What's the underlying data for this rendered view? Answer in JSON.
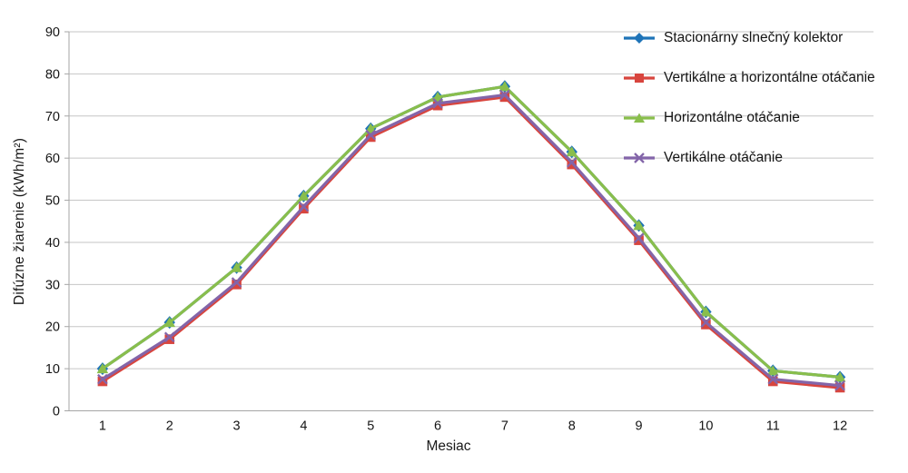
{
  "chart_data": {
    "type": "line",
    "title": "",
    "xlabel": "Mesiac",
    "ylabel": "Difúzne žiarenie (kWh/m²)",
    "x": [
      1,
      2,
      3,
      4,
      5,
      6,
      7,
      8,
      9,
      10,
      11,
      12
    ],
    "ylim": [
      0,
      90
    ],
    "ytick_step": 10,
    "grid": true,
    "legend_position": "right-top",
    "series": [
      {
        "name": "Stacionárny slnečný kolektor",
        "color": "#1F74B8",
        "marker": "diamond",
        "values": [
          10,
          21,
          34,
          51,
          67,
          74.5,
          77,
          61.5,
          44,
          23.5,
          9.5,
          8
        ]
      },
      {
        "name": "Vertikálne a horizontálne otáčanie",
        "color": "#D8453E",
        "marker": "square",
        "values": [
          7,
          17,
          30,
          48,
          65,
          72.5,
          74.5,
          58.5,
          40.5,
          20.5,
          7,
          5.5
        ]
      },
      {
        "name": "Horizontálne otáčanie",
        "color": "#89BE4C",
        "marker": "triangle-up",
        "values": [
          10,
          21,
          34,
          51,
          67,
          74.5,
          77,
          61.5,
          44,
          23.5,
          9.5,
          8
        ]
      },
      {
        "name": "Vertikálne otáčanie",
        "color": "#8365A9",
        "marker": "x",
        "values": [
          7.5,
          17.5,
          30.5,
          48.5,
          65.5,
          73,
          75,
          59,
          41,
          21,
          7.5,
          6
        ]
      }
    ],
    "axis_colors": {
      "gridline": "#C6C6C6",
      "axis_line": "#A6A6A6",
      "tick_text": "#151515"
    }
  }
}
